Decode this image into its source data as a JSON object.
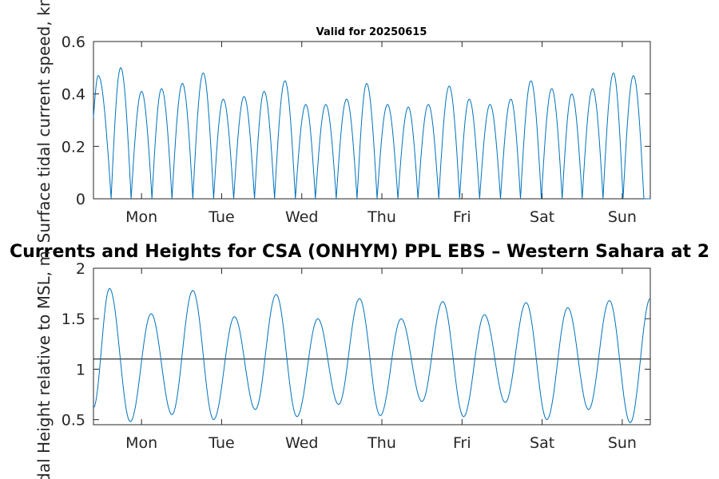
{
  "figure": {
    "top_title": "Valid for 20250615",
    "main_title": "Currents and Heights for CSA (ONHYM) PPL EBS  – Western Sahara at 2"
  },
  "colors": {
    "series": "#0072BD",
    "axis": "#262626",
    "reference_line": "#000000"
  },
  "chart_data": [
    {
      "type": "line",
      "title": "Valid for 20250615",
      "ylabel": "Surface tidal current speed, kn",
      "xlabel": "",
      "x_range_days": [
        0,
        6.95
      ],
      "xtick_days": [
        0.6,
        1.6,
        2.6,
        3.6,
        4.6,
        5.6,
        6.6
      ],
      "xtick_labels": [
        "Mon",
        "Tue",
        "Wed",
        "Thu",
        "Fri",
        "Sat",
        "Sun"
      ],
      "ylim": [
        0,
        0.6
      ],
      "yticks": [
        0,
        0.2,
        0.4,
        0.6
      ],
      "ytick_labels": [
        "0",
        "0.2",
        "0.4",
        "0.6"
      ],
      "grid": false,
      "series": [
        {
          "x_days": [
            0.0,
            0.06,
            0.22,
            0.34,
            0.47,
            0.6,
            0.73,
            0.85,
            0.98,
            1.11,
            1.24,
            1.37,
            1.5,
            1.62,
            1.75,
            1.88,
            2.01,
            2.13,
            2.26,
            2.39,
            2.52,
            2.65,
            2.77,
            2.9,
            3.03,
            3.16,
            3.29,
            3.41,
            3.54,
            3.67,
            3.8,
            3.93,
            4.05,
            4.18,
            4.31,
            4.44,
            4.57,
            4.69,
            4.82,
            4.95,
            5.08,
            5.21,
            5.33,
            5.46,
            5.59,
            5.72,
            5.85,
            5.97,
            6.1,
            6.23,
            6.36,
            6.49,
            6.61,
            6.74,
            6.87,
            6.95
          ],
          "values": [
            0.31,
            0.47,
            0.0,
            0.5,
            0.0,
            0.41,
            0.0,
            0.42,
            0.0,
            0.44,
            0.0,
            0.48,
            0.0,
            0.38,
            0.0,
            0.39,
            0.0,
            0.41,
            0.0,
            0.45,
            0.0,
            0.36,
            0.0,
            0.36,
            0.0,
            0.38,
            0.0,
            0.44,
            0.0,
            0.36,
            0.0,
            0.35,
            0.0,
            0.36,
            0.0,
            0.43,
            0.0,
            0.38,
            0.0,
            0.36,
            0.0,
            0.38,
            0.0,
            0.45,
            0.0,
            0.42,
            0.0,
            0.4,
            0.0,
            0.42,
            0.0,
            0.48,
            0.0,
            0.47,
            0.0,
            0.0
          ]
        }
      ]
    },
    {
      "type": "line",
      "title": "Currents and Heights for CSA (ONHYM) PPL EBS  – Western Sahara at 2",
      "ylabel": "Tidal Height relative to MSL, m",
      "xlabel": "",
      "x_range_days": [
        0,
        6.95
      ],
      "xtick_days": [
        0.6,
        1.6,
        2.6,
        3.6,
        4.6,
        5.6,
        6.6
      ],
      "xtick_labels": [
        "Mon",
        "Tue",
        "Wed",
        "Thu",
        "Fri",
        "Sat",
        "Sun"
      ],
      "ylim": [
        0.45,
        2
      ],
      "yticks": [
        0.5,
        1,
        1.5,
        2
      ],
      "ytick_labels": [
        "0.5",
        "1",
        "1.5",
        "2"
      ],
      "reference_line_y": 1.1,
      "grid": false,
      "series": [
        {
          "x_days": [
            0.0,
            0.2,
            0.46,
            0.72,
            0.98,
            1.24,
            1.5,
            1.76,
            2.02,
            2.28,
            2.54,
            2.8,
            3.06,
            3.32,
            3.58,
            3.84,
            4.1,
            4.36,
            4.62,
            4.88,
            5.14,
            5.4,
            5.66,
            5.92,
            6.18,
            6.44,
            6.7,
            6.95
          ],
          "values": [
            0.62,
            1.8,
            0.48,
            1.55,
            0.55,
            1.78,
            0.5,
            1.52,
            0.6,
            1.74,
            0.53,
            1.5,
            0.65,
            1.7,
            0.54,
            1.5,
            0.68,
            1.67,
            0.53,
            1.54,
            0.67,
            1.66,
            0.5,
            1.61,
            0.6,
            1.68,
            0.47,
            1.7
          ]
        }
      ]
    }
  ]
}
